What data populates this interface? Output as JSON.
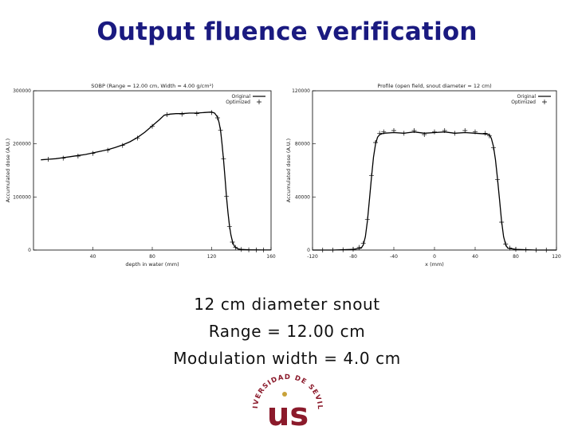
{
  "slide": {
    "title": "Output fluence verification",
    "caption_lines": [
      "12 cm diameter snout",
      "Range = 12.00 cm",
      "Modulation width = 4.0 cm"
    ],
    "logo_text": "UNIVERSIDAD DE SEVILLA",
    "logo_letters": "us"
  },
  "colors": {
    "title": "#1a1a80",
    "curve": "#000000",
    "logo": "#8b1a2b",
    "logo_gold": "#c8a23a"
  },
  "chart_data": [
    {
      "type": "line",
      "title": "SOBP (Range = 12.00 cm, Width = 4.00 g/cm²)",
      "xlabel": "depth in water (mm)",
      "ylabel": "Accumulated dose (A.U.)",
      "xlim": [
        0,
        160
      ],
      "ylim": [
        0,
        300000
      ],
      "x_ticks": [
        "40",
        "80",
        "120",
        "160"
      ],
      "y_ticks": [
        "0",
        "100000",
        "200000",
        "300000"
      ],
      "legend": {
        "position": "top-right",
        "entries": [
          "Original",
          "Optimized"
        ]
      },
      "series": [
        {
          "name": "Original",
          "style": "line",
          "x": [
            5,
            10,
            15,
            20,
            25,
            30,
            35,
            40,
            45,
            50,
            55,
            60,
            65,
            70,
            75,
            80,
            85,
            88,
            92,
            96,
            100,
            105,
            110,
            115,
            120,
            122,
            124,
            125,
            126,
            127,
            128,
            129,
            130,
            131,
            132,
            133,
            134,
            135,
            136,
            138,
            140,
            145,
            150,
            155,
            160
          ],
          "y": [
            170000,
            171000,
            172000,
            174000,
            176000,
            178000,
            180000,
            183000,
            186000,
            189000,
            193000,
            198000,
            204000,
            212000,
            222000,
            234000,
            246000,
            254000,
            256000,
            257000,
            257000,
            258000,
            258000,
            259000,
            260000,
            258000,
            250000,
            240000,
            225000,
            200000,
            170000,
            135000,
            100000,
            70000,
            45000,
            28000,
            16000,
            9000,
            5000,
            2000,
            1000,
            500,
            300,
            200,
            100
          ]
        },
        {
          "name": "Optimized",
          "style": "points",
          "x": [
            10,
            20,
            30,
            40,
            50,
            60,
            70,
            80,
            90,
            100,
            110,
            120,
            124,
            126,
            128,
            130,
            132,
            134,
            136,
            140,
            145,
            150,
            155
          ],
          "y": [
            171000,
            173000,
            177000,
            182000,
            188000,
            197000,
            211000,
            233000,
            255000,
            256000,
            257000,
            259000,
            249000,
            226000,
            172000,
            101000,
            44000,
            15000,
            5000,
            1200,
            400,
            250,
            150
          ]
        }
      ]
    },
    {
      "type": "line",
      "title": "Profile (open field, snout diameter = 12 cm)",
      "xlabel": "x (mm)",
      "ylabel": "Accumulated dose (A.U.)",
      "xlim": [
        -120,
        120
      ],
      "ylim": [
        0,
        120000
      ],
      "x_ticks": [
        "-120",
        "-80",
        "-40",
        "0",
        "40",
        "80",
        "120"
      ],
      "y_ticks": [
        "0",
        "40000",
        "80000",
        "120000"
      ],
      "legend": {
        "position": "top-right",
        "entries": [
          "Original",
          "Optimized"
        ]
      },
      "series": [
        {
          "name": "Original",
          "style": "line",
          "x": [
            -120,
            -100,
            -80,
            -72,
            -70,
            -68,
            -66,
            -64,
            -62,
            -60,
            -58,
            -56,
            -54,
            -50,
            -40,
            -30,
            -20,
            -10,
            0,
            10,
            20,
            30,
            40,
            50,
            54,
            56,
            58,
            60,
            62,
            64,
            66,
            68,
            70,
            72,
            80,
            100,
            120
          ],
          "y": [
            0,
            0,
            500,
            1500,
            4000,
            10000,
            22000,
            38000,
            55000,
            70000,
            80000,
            85000,
            87000,
            88000,
            88500,
            88000,
            89000,
            88000,
            88500,
            89000,
            88000,
            88500,
            88000,
            87500,
            87000,
            84000,
            78000,
            68000,
            54000,
            38000,
            22000,
            10000,
            4000,
            1500,
            500,
            0,
            0
          ]
        },
        {
          "name": "Optimized",
          "style": "points",
          "x": [
            -110,
            -100,
            -90,
            -80,
            -74,
            -70,
            -66,
            -62,
            -58,
            -54,
            -50,
            -40,
            -30,
            -20,
            -10,
            0,
            10,
            20,
            30,
            40,
            50,
            54,
            58,
            62,
            66,
            70,
            74,
            80,
            90,
            100,
            110
          ],
          "y": [
            0,
            0,
            200,
            600,
            2000,
            5000,
            23000,
            56000,
            81000,
            88000,
            89000,
            90000,
            88000,
            90000,
            87000,
            89000,
            90000,
            88000,
            90000,
            89000,
            88000,
            86000,
            77000,
            53000,
            21000,
            4500,
            1500,
            500,
            200,
            0,
            0
          ]
        }
      ]
    }
  ]
}
